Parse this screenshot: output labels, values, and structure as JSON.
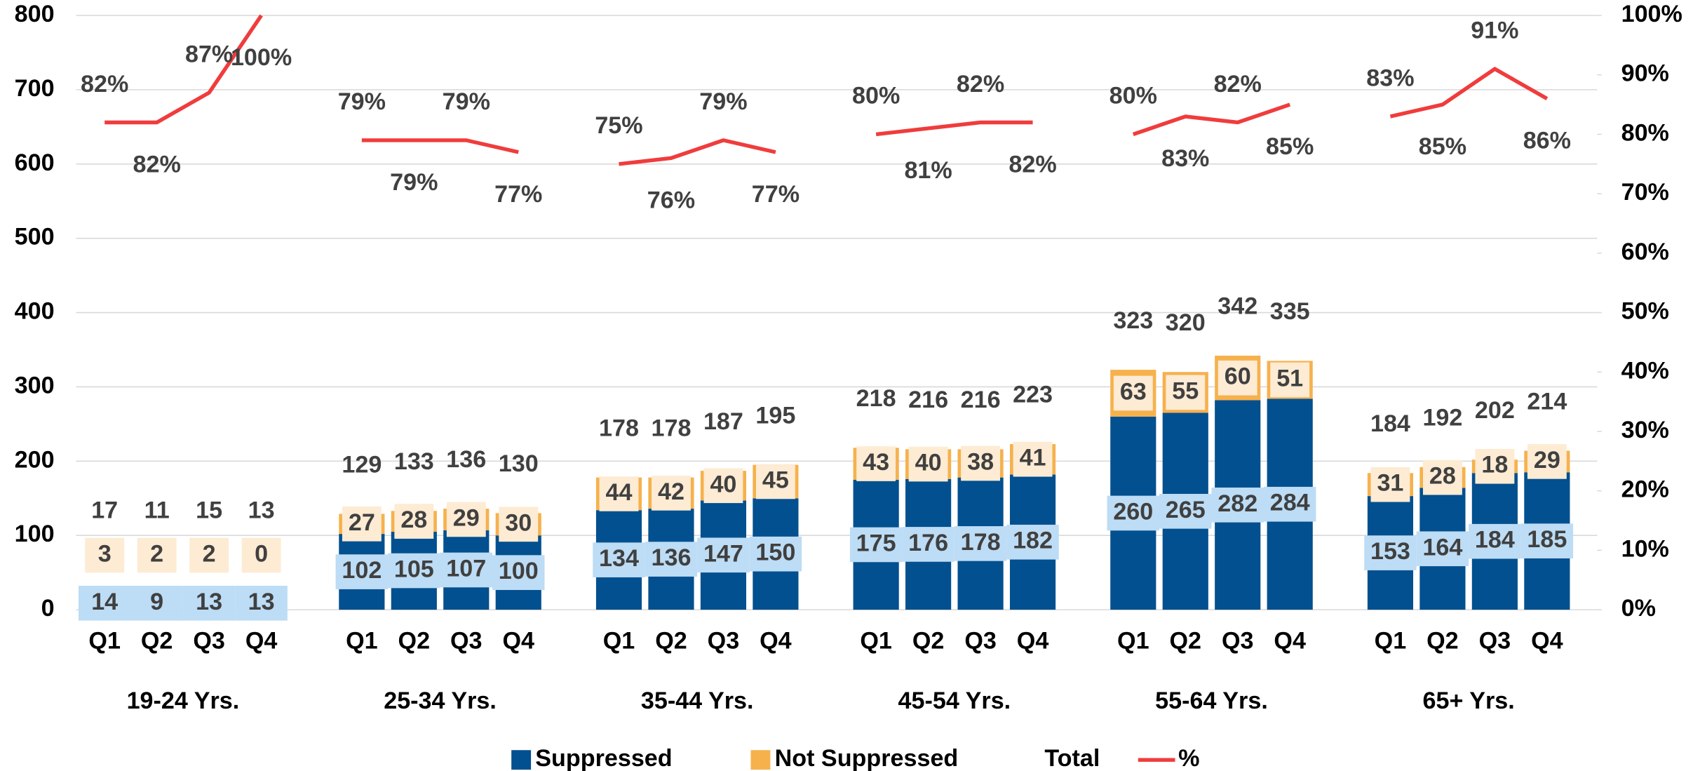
{
  "chart_data": {
    "type": "bar",
    "stacked": true,
    "categories": [
      "Q1",
      "Q2",
      "Q3",
      "Q4",
      "Q1",
      "Q2",
      "Q3",
      "Q4",
      "Q1",
      "Q2",
      "Q3",
      "Q4",
      "Q1",
      "Q2",
      "Q3",
      "Q4",
      "Q1",
      "Q2",
      "Q3",
      "Q4",
      "Q1",
      "Q2",
      "Q3",
      "Q4"
    ],
    "groups": [
      "19-24 Yrs.",
      "25-34 Yrs.",
      "35-44 Yrs.",
      "45-54 Yrs.",
      "55-64 Yrs.",
      "65+ Yrs."
    ],
    "series": [
      {
        "name": "Suppressed",
        "color": "#02508f",
        "values": [
          14,
          9,
          13,
          13,
          102,
          105,
          107,
          100,
          134,
          136,
          147,
          150,
          175,
          176,
          178,
          182,
          260,
          265,
          282,
          284,
          153,
          164,
          184,
          185
        ]
      },
      {
        "name": "Not Suppressed",
        "color": "#f6b14d",
        "values": [
          3,
          2,
          2,
          0,
          27,
          28,
          29,
          30,
          44,
          42,
          40,
          45,
          43,
          40,
          38,
          41,
          63,
          55,
          60,
          51,
          31,
          28,
          18,
          29
        ]
      },
      {
        "name": "Total",
        "values": [
          17,
          11,
          15,
          13,
          129,
          133,
          136,
          130,
          178,
          178,
          187,
          195,
          218,
          216,
          216,
          223,
          323,
          320,
          342,
          335,
          184,
          192,
          202,
          214
        ]
      },
      {
        "name": "%",
        "type": "line",
        "axis": "y2",
        "color": "#f03c3c",
        "values": [
          82,
          82,
          87,
          100,
          79,
          79,
          79,
          77,
          75,
          76,
          79,
          77,
          80,
          81,
          82,
          82,
          80,
          83,
          82,
          85,
          83,
          85,
          91,
          86
        ],
        "value_labels": [
          "82%",
          "82%",
          "87%",
          "100%",
          "79%",
          "79%",
          "79%",
          "77%",
          "75%",
          "76%",
          "79%",
          "77%",
          "80%",
          "81%",
          "82%",
          "82%",
          "80%",
          "83%",
          "82%",
          "85%",
          "83%",
          "85%",
          "91%",
          "86%"
        ]
      }
    ],
    "ylim": [
      0,
      800
    ],
    "yticks": [
      0,
      100,
      200,
      300,
      400,
      500,
      600,
      700,
      800
    ],
    "y2lim": [
      0,
      100
    ],
    "y2ticks": [
      {
        "value": 0,
        "label": "0%"
      },
      {
        "value": 10,
        "label": "10%"
      },
      {
        "value": 20,
        "label": "20%"
      },
      {
        "value": 30,
        "label": "30%"
      },
      {
        "value": 40,
        "label": "40%"
      },
      {
        "value": 50,
        "label": "50%"
      },
      {
        "value": 60,
        "label": "60%"
      },
      {
        "value": 70,
        "label": "70%"
      },
      {
        "value": 80,
        "label": "80%"
      },
      {
        "value": 90,
        "label": "90%"
      },
      {
        "value": 100,
        "label": "100%"
      }
    ],
    "grid": true,
    "legend": "bottom"
  }
}
